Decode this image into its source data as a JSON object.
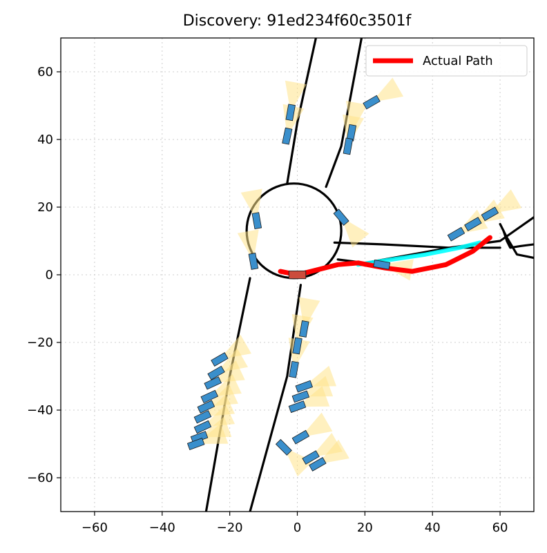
{
  "chart_data": {
    "type": "scatter",
    "title": "Discovery: 91ed234f60c3501f",
    "xlabel": "",
    "ylabel": "",
    "xlim": [
      -70,
      70
    ],
    "ylim": [
      -70,
      70
    ],
    "xticks": [
      -60,
      -40,
      -20,
      0,
      20,
      40,
      60
    ],
    "yticks": [
      -60,
      -40,
      -20,
      0,
      20,
      40,
      60
    ],
    "xtick_labels": [
      "−60",
      "−40",
      "−20",
      "0",
      "20",
      "40",
      "60"
    ],
    "ytick_labels": [
      "−60",
      "−40",
      "−20",
      "0",
      "20",
      "40",
      "60"
    ],
    "grid": true,
    "legend": {
      "placement": "top-right",
      "entries": [
        "Actual Path"
      ]
    },
    "colors": {
      "road": "#000000",
      "actual_path": "#ff0000",
      "planned_path": "#00ffff",
      "vehicle_fill": "#3a8fcc",
      "vehicle_edge": "#1a1a1a",
      "ego_fill": "#cc4c3c",
      "view_cone": "#ffe48a",
      "grid": "#cccccc"
    },
    "roads": [
      {
        "name": "north-road-west-edge",
        "points": [
          [
            -3,
            27
          ],
          [
            0,
            45
          ],
          [
            5.5,
            70
          ]
        ]
      },
      {
        "name": "north-road-east-edge",
        "points": [
          [
            8.5,
            26
          ],
          [
            13,
            38
          ],
          [
            19,
            70
          ]
        ]
      },
      {
        "name": "roundabout-circle",
        "center": [
          -1,
          13
        ],
        "radius": 14
      },
      {
        "name": "ne-road-upper-edge",
        "points": [
          [
            11,
            9.5
          ],
          [
            25,
            9
          ],
          [
            45,
            8
          ],
          [
            60,
            10
          ],
          [
            70,
            17
          ]
        ]
      },
      {
        "name": "ne-road-lower-edge",
        "points": [
          [
            12,
            4.5
          ],
          [
            20,
            3.5
          ],
          [
            45,
            8
          ],
          [
            60,
            8
          ]
        ]
      },
      {
        "name": "east-island-loop",
        "points": [
          [
            61,
            13
          ],
          [
            62,
            10
          ],
          [
            63,
            8
          ],
          [
            66,
            8.5
          ],
          [
            70,
            9
          ]
        ]
      },
      {
        "name": "east-right-edge",
        "points": [
          [
            60,
            15
          ],
          [
            62,
            11
          ],
          [
            65,
            6
          ],
          [
            70,
            5
          ]
        ]
      },
      {
        "name": "sw-road-west-edge",
        "points": [
          [
            -14,
            -1
          ],
          [
            -20,
            -30
          ],
          [
            -27,
            -70
          ]
        ]
      },
      {
        "name": "sw-road-east-edge",
        "points": [
          [
            1,
            -3
          ],
          [
            -3,
            -30
          ],
          [
            -14,
            -70
          ]
        ]
      }
    ],
    "actual_path": [
      [
        -5,
        1
      ],
      [
        0,
        0
      ],
      [
        6,
        1.5
      ],
      [
        12,
        3
      ],
      [
        18,
        3.5
      ],
      [
        26,
        2
      ],
      [
        34,
        1
      ],
      [
        44,
        3
      ],
      [
        52,
        7
      ],
      [
        57,
        11
      ]
    ],
    "planned_path": [
      [
        18,
        3
      ],
      [
        28,
        4.5
      ],
      [
        38,
        6
      ],
      [
        48,
        8
      ],
      [
        54,
        9.5
      ]
    ],
    "ego_vehicle": {
      "x": 0,
      "y": 0,
      "heading_deg": 0
    },
    "vehicles": [
      {
        "x": -2,
        "y": 48,
        "heading_deg": 80
      },
      {
        "x": -3,
        "y": 41,
        "heading_deg": 78
      },
      {
        "x": 16,
        "y": 42,
        "heading_deg": 80
      },
      {
        "x": 15,
        "y": 38,
        "heading_deg": 80
      },
      {
        "x": 22,
        "y": 51,
        "heading_deg": 30
      },
      {
        "x": 13,
        "y": 17,
        "heading_deg": -50
      },
      {
        "x": -12,
        "y": 16,
        "heading_deg": 100
      },
      {
        "x": -13,
        "y": 4,
        "heading_deg": 100
      },
      {
        "x": 47,
        "y": 12,
        "heading_deg": 30
      },
      {
        "x": 52,
        "y": 15,
        "heading_deg": 30
      },
      {
        "x": 57,
        "y": 18,
        "heading_deg": 30
      },
      {
        "x": 25,
        "y": 3,
        "heading_deg": -10
      },
      {
        "x": 2,
        "y": -16,
        "heading_deg": 80
      },
      {
        "x": 0,
        "y": -21,
        "heading_deg": 80
      },
      {
        "x": -1,
        "y": -28,
        "heading_deg": 80
      },
      {
        "x": 2,
        "y": -33,
        "heading_deg": 20
      },
      {
        "x": 1,
        "y": -36,
        "heading_deg": 20
      },
      {
        "x": 0,
        "y": -39,
        "heading_deg": 20
      },
      {
        "x": -23,
        "y": -25,
        "heading_deg": 30
      },
      {
        "x": -24,
        "y": -29,
        "heading_deg": 30
      },
      {
        "x": -25,
        "y": -32,
        "heading_deg": 25
      },
      {
        "x": -26,
        "y": -36,
        "heading_deg": 25
      },
      {
        "x": -27,
        "y": -39,
        "heading_deg": 25
      },
      {
        "x": -28,
        "y": -42,
        "heading_deg": 25
      },
      {
        "x": -28,
        "y": -45,
        "heading_deg": 25
      },
      {
        "x": -29,
        "y": -48,
        "heading_deg": 20
      },
      {
        "x": -30,
        "y": -50,
        "heading_deg": 20
      },
      {
        "x": -4,
        "y": -51,
        "heading_deg": -45
      },
      {
        "x": 1,
        "y": -48,
        "heading_deg": 30
      },
      {
        "x": 4,
        "y": -54,
        "heading_deg": 30
      },
      {
        "x": 6,
        "y": -56,
        "heading_deg": 30
      }
    ]
  },
  "legend": {
    "label": "Actual Path"
  }
}
